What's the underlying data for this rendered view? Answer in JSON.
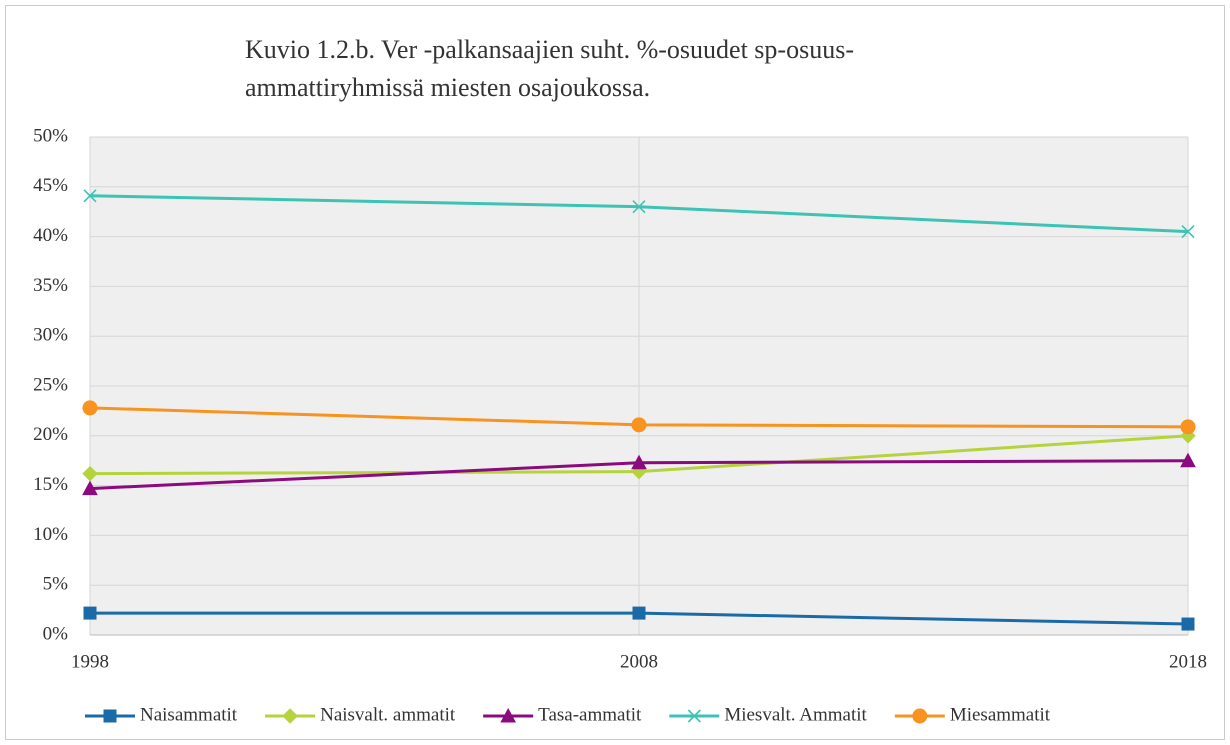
{
  "chart_data": {
    "type": "line",
    "title": [
      "Kuvio 1.2.b. Ver -palkansaajien suht. %-osuudet sp-osuus-",
      "ammattiryhmissä miesten osajoukossa."
    ],
    "x": [
      1998,
      2008,
      2018
    ],
    "xlim": [
      1998,
      2018
    ],
    "xticks": [
      1998,
      2008,
      2018
    ],
    "ylim": [
      0,
      50
    ],
    "yticks": [
      {
        "value": 0,
        "label": "0%"
      },
      {
        "value": 5,
        "label": "5%"
      },
      {
        "value": 10,
        "label": "10%"
      },
      {
        "value": 15,
        "label": "15%"
      },
      {
        "value": 20,
        "label": "20%"
      },
      {
        "value": 25,
        "label": "25%"
      },
      {
        "value": 30,
        "label": "30%"
      },
      {
        "value": 35,
        "label": "35%"
      },
      {
        "value": 40,
        "label": "40%"
      },
      {
        "value": 45,
        "label": "45%"
      },
      {
        "value": 50,
        "label": "50%"
      }
    ],
    "grid": true,
    "legend": "bottom",
    "series": [
      {
        "name": "Naisammatit",
        "color": "#1b6aa8",
        "marker": "square",
        "values": [
          2.2,
          2.2,
          1.1
        ]
      },
      {
        "name": "Naisvalt. ammatit",
        "color": "#b5d33c",
        "marker": "diamond",
        "values": [
          16.2,
          16.4,
          20.0
        ]
      },
      {
        "name": "Tasa-ammatit",
        "color": "#8b0a7e",
        "marker": "triangle",
        "values": [
          14.7,
          17.3,
          17.5
        ]
      },
      {
        "name": "Miesvalt. Ammatit",
        "color": "#3cc3b4",
        "marker": "x",
        "values": [
          44.1,
          43.0,
          40.5
        ]
      },
      {
        "name": "Miesammatit",
        "color": "#f7931e",
        "marker": "circle",
        "values": [
          22.8,
          21.1,
          20.9
        ]
      }
    ]
  }
}
